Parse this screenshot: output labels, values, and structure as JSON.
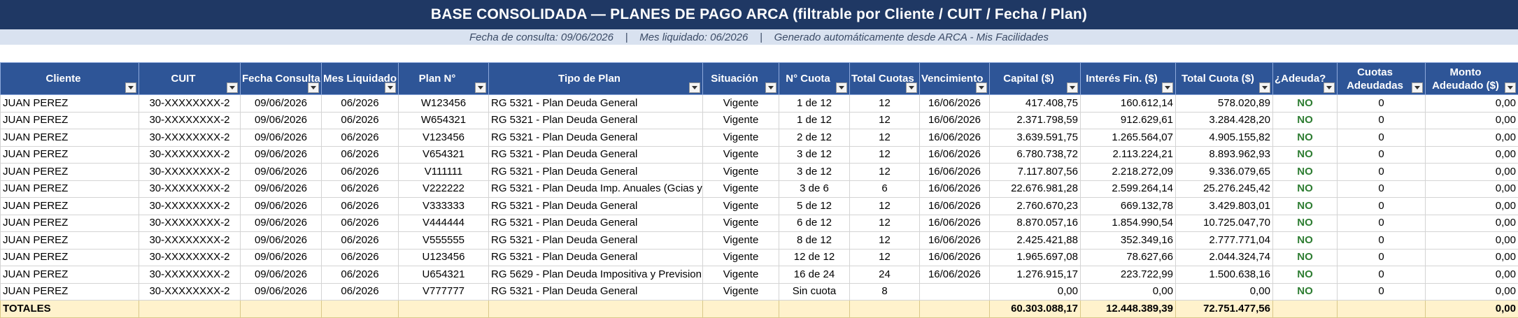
{
  "title": "BASE CONSOLIDADA — PLANES DE PAGO ARCA  (filtrable por Cliente / CUIT / Fecha / Plan)",
  "subtitle": "Fecha de consulta: 09/06/2026    |    Mes liquidado: 06/2026    |    Generado automáticamente desde ARCA - Mis Facilidades",
  "colors": {
    "title_bg": "#1f3864",
    "subtitle_bg": "#d9e2f0",
    "header_bg": "#2e5597",
    "totals_bg": "#fff2cc",
    "no_text": "#2e7d32"
  },
  "filter_icon": "dropdown-arrow-icon",
  "columns": [
    "Cliente",
    "CUIT",
    "Fecha Consulta",
    "Mes Liquidado",
    "Plan N°",
    "Tipo de Plan",
    "Situación",
    "N° Cuota",
    "Total Cuotas",
    "Vencimiento",
    "Capital ($)",
    "Interés Fin. ($)",
    "Total Cuota ($)",
    "¿Adeuda?",
    "Cuotas Adeudadas",
    "Monto Adeudado ($)"
  ],
  "rows": [
    [
      "JUAN PEREZ",
      "30-XXXXXXXX-2",
      "09/06/2026",
      "06/2026",
      "W123456",
      "RG 5321 - Plan Deuda General",
      "Vigente",
      "1 de 12",
      "12",
      "16/06/2026",
      "417.408,75",
      "160.612,14",
      "578.020,89",
      "NO",
      "0",
      "0,00"
    ],
    [
      "JUAN PEREZ",
      "30-XXXXXXXX-2",
      "09/06/2026",
      "06/2026",
      "W654321",
      "RG 5321 - Plan Deuda General",
      "Vigente",
      "1 de 12",
      "12",
      "16/06/2026",
      "2.371.798,59",
      "912.629,61",
      "3.284.428,20",
      "NO",
      "0",
      "0,00"
    ],
    [
      "JUAN PEREZ",
      "30-XXXXXXXX-2",
      "09/06/2026",
      "06/2026",
      "V123456",
      "RG 5321 - Plan Deuda General",
      "Vigente",
      "2 de 12",
      "12",
      "16/06/2026",
      "3.639.591,75",
      "1.265.564,07",
      "4.905.155,82",
      "NO",
      "0",
      "0,00"
    ],
    [
      "JUAN PEREZ",
      "30-XXXXXXXX-2",
      "09/06/2026",
      "06/2026",
      "V654321",
      "RG 5321 - Plan Deuda General",
      "Vigente",
      "3 de 12",
      "12",
      "16/06/2026",
      "6.780.738,72",
      "2.113.224,21",
      "8.893.962,93",
      "NO",
      "0",
      "0,00"
    ],
    [
      "JUAN PEREZ",
      "30-XXXXXXXX-2",
      "09/06/2026",
      "06/2026",
      "V111111",
      "RG 5321 - Plan Deuda General",
      "Vigente",
      "3 de 12",
      "12",
      "16/06/2026",
      "7.117.807,56",
      "2.218.272,09",
      "9.336.079,65",
      "NO",
      "0",
      "0,00"
    ],
    [
      "JUAN PEREZ",
      "30-XXXXXXXX-2",
      "09/06/2026",
      "06/2026",
      "V222222",
      "RG 5321 - Plan Deuda Imp. Anuales (Gcias y",
      "Vigente",
      "3 de 6",
      "6",
      "16/06/2026",
      "22.676.981,28",
      "2.599.264,14",
      "25.276.245,42",
      "NO",
      "0",
      "0,00"
    ],
    [
      "JUAN PEREZ",
      "30-XXXXXXXX-2",
      "09/06/2026",
      "06/2026",
      "V333333",
      "RG 5321 - Plan Deuda General",
      "Vigente",
      "5 de 12",
      "12",
      "16/06/2026",
      "2.760.670,23",
      "669.132,78",
      "3.429.803,01",
      "NO",
      "0",
      "0,00"
    ],
    [
      "JUAN PEREZ",
      "30-XXXXXXXX-2",
      "09/06/2026",
      "06/2026",
      "V444444",
      "RG 5321 - Plan Deuda General",
      "Vigente",
      "6 de 12",
      "12",
      "16/06/2026",
      "8.870.057,16",
      "1.854.990,54",
      "10.725.047,70",
      "NO",
      "0",
      "0,00"
    ],
    [
      "JUAN PEREZ",
      "30-XXXXXXXX-2",
      "09/06/2026",
      "06/2026",
      "V555555",
      "RG 5321 - Plan Deuda General",
      "Vigente",
      "8 de 12",
      "12",
      "16/06/2026",
      "2.425.421,88",
      "352.349,16",
      "2.777.771,04",
      "NO",
      "0",
      "0,00"
    ],
    [
      "JUAN PEREZ",
      "30-XXXXXXXX-2",
      "09/06/2026",
      "06/2026",
      "U123456",
      "RG 5321 - Plan Deuda General",
      "Vigente",
      "12 de 12",
      "12",
      "16/06/2026",
      "1.965.697,08",
      "78.627,66",
      "2.044.324,74",
      "NO",
      "0",
      "0,00"
    ],
    [
      "JUAN PEREZ",
      "30-XXXXXXXX-2",
      "09/06/2026",
      "06/2026",
      "U654321",
      "RG 5629 - Plan Deuda Impositiva y Prevision",
      "Vigente",
      "16 de 24",
      "24",
      "16/06/2026",
      "1.276.915,17",
      "223.722,99",
      "1.500.638,16",
      "NO",
      "0",
      "0,00"
    ],
    [
      "JUAN PEREZ",
      "30-XXXXXXXX-2",
      "09/06/2026",
      "06/2026",
      "V777777",
      "RG 5321 - Plan Deuda General",
      "Vigente",
      "Sin cuota",
      "8",
      "",
      "0,00",
      "0,00",
      "0,00",
      "NO",
      "0",
      "0,00"
    ]
  ],
  "totals": [
    "TOTALES",
    "",
    "",
    "",
    "",
    "",
    "",
    "",
    "",
    "",
    "60.303.088,17",
    "12.448.389,39",
    "72.751.477,56",
    "",
    "",
    "0,00"
  ]
}
